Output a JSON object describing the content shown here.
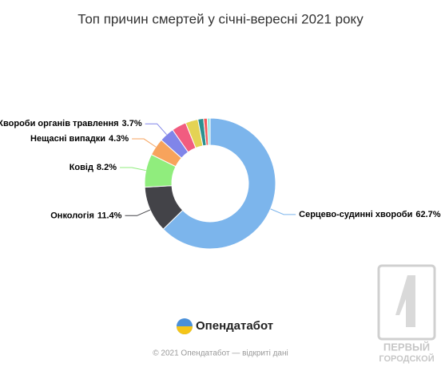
{
  "chart_data": {
    "type": "donut",
    "title": "Топ причин смертей у січні-вересні 2021 року",
    "categories": [
      "Серцево-судинні хвороби",
      "Онкологія",
      "Ковід",
      "Нещасні випадки",
      "Хвороби органів травлення",
      null,
      null,
      null,
      null,
      null
    ],
    "values": [
      62.7,
      11.4,
      8.2,
      4.3,
      3.7,
      3.6,
      3.1,
      1.4,
      0.9,
      0.7
    ],
    "value_labels": [
      "62.7%",
      "11.4%",
      "8.2%",
      "4.3%",
      "3.7%",
      null,
      null,
      null,
      null,
      null
    ],
    "colors": [
      "#7cb5ec",
      "#434348",
      "#90ed7d",
      "#f7a35c",
      "#8085e9",
      "#f15c80",
      "#e4d354",
      "#2b908f",
      "#f45b5b",
      "#91e8e1"
    ]
  },
  "branding": {
    "logo": "Опендатабот",
    "footer": "© 2021 Опендатабот — відкриті дані"
  },
  "watermark": {
    "line1": "ПЕРВЫЙ",
    "line2": "ГОРОДСКОЙ"
  }
}
